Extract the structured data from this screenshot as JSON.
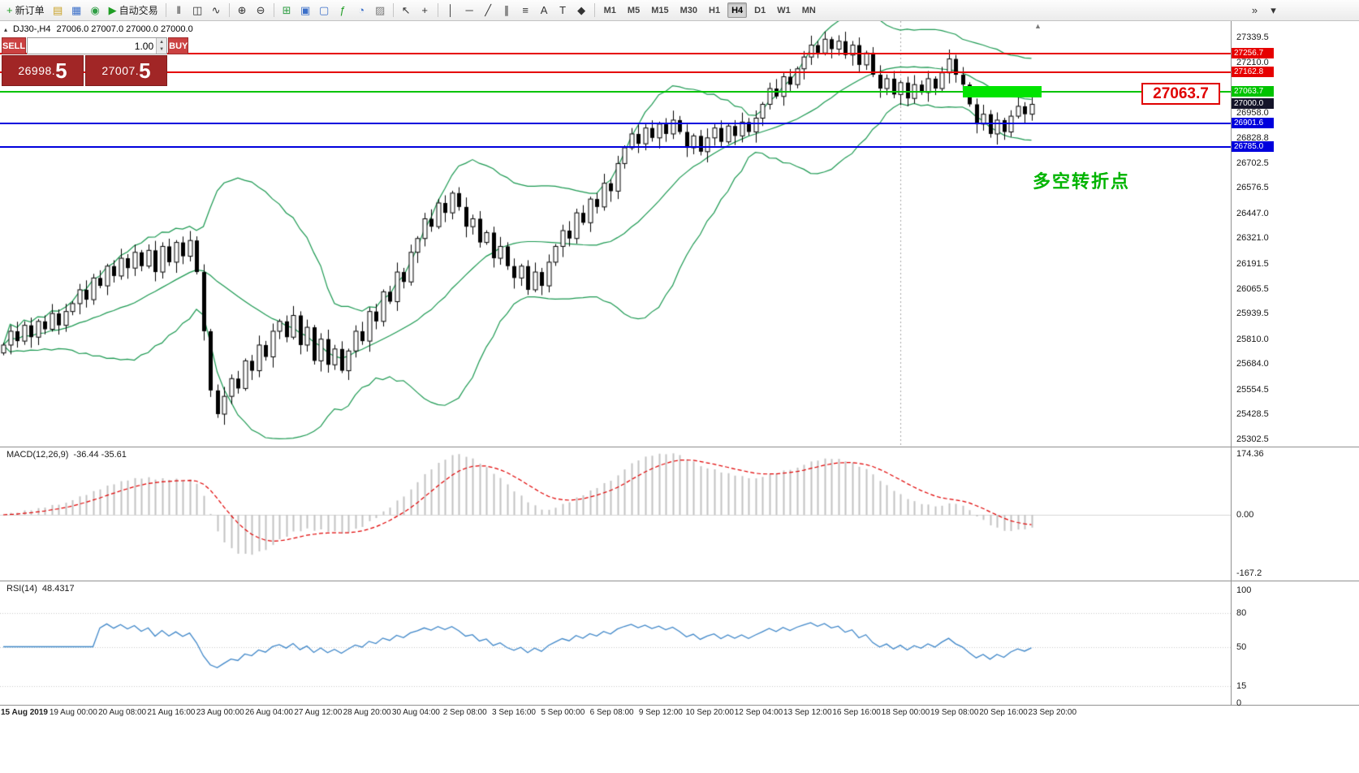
{
  "toolbar": {
    "items": [
      {
        "type": "btn",
        "name": "new-order-button",
        "glyph": "+",
        "color": "#1f9d23",
        "label": "新订单"
      },
      {
        "type": "btn",
        "name": "profiles-icon",
        "glyph": "▤",
        "color": "#c9a227"
      },
      {
        "type": "btn",
        "name": "terminal-icon",
        "glyph": "▦",
        "color": "#3b6fc9"
      },
      {
        "type": "btn",
        "name": "sounds-icon",
        "glyph": "◉",
        "color": "#2f9e44"
      },
      {
        "type": "btn",
        "name": "autotrading-button",
        "glyph": "▶",
        "color": "#1f9d23",
        "label": "自动交易"
      },
      {
        "type": "sep"
      },
      {
        "type": "btn",
        "name": "bars-chart-icon",
        "glyph": "‖"
      },
      {
        "type": "btn",
        "name": "candlestick-chart-icon",
        "glyph": "◫"
      },
      {
        "type": "btn",
        "name": "line-chart-icon",
        "glyph": "∿"
      },
      {
        "type": "sep"
      },
      {
        "type": "btn",
        "name": "zoom-in-icon",
        "glyph": "⊕"
      },
      {
        "type": "btn",
        "name": "zoom-out-icon",
        "glyph": "⊖"
      },
      {
        "type": "sep"
      },
      {
        "type": "btn",
        "name": "tile-windows-icon",
        "glyph": "⊞",
        "color": "#2f9e44"
      },
      {
        "type": "btn",
        "name": "cascade-windows-icon",
        "glyph": "▣",
        "color": "#3b6fc9"
      },
      {
        "type": "btn",
        "name": "arrange-windows-icon",
        "glyph": "▢",
        "color": "#3b6fc9"
      },
      {
        "type": "btn",
        "name": "indicators-icon",
        "glyph": "ƒ",
        "color": "#1f9d23"
      },
      {
        "type": "btn",
        "name": "periods-icon",
        "glyph": "◔",
        "color": "#3b6fc9"
      },
      {
        "type": "btn",
        "name": "templates-icon",
        "glyph": "▨",
        "color": "#777777"
      },
      {
        "type": "sep"
      },
      {
        "type": "btn",
        "name": "cursor-icon",
        "glyph": "↖"
      },
      {
        "type": "btn",
        "name": "crosshair-icon",
        "glyph": "+"
      },
      {
        "type": "sep"
      },
      {
        "type": "btn",
        "name": "vertical-line-icon",
        "glyph": "│"
      },
      {
        "type": "btn",
        "name": "horizontal-line-icon",
        "glyph": "─"
      },
      {
        "type": "btn",
        "name": "trendline-icon",
        "glyph": "╱"
      },
      {
        "type": "btn",
        "name": "equidistant-channel-icon",
        "glyph": "∥"
      },
      {
        "type": "btn",
        "name": "fibonacci-icon",
        "glyph": "≡"
      },
      {
        "type": "btn",
        "name": "text-icon",
        "glyph": "A"
      },
      {
        "type": "btn",
        "name": "text-label-icon",
        "glyph": "T"
      },
      {
        "type": "btn",
        "name": "shapes-icon",
        "glyph": "◆"
      },
      {
        "type": "sep"
      }
    ],
    "timeframes": [
      "M1",
      "M5",
      "M15",
      "M30",
      "H1",
      "H4",
      "D1",
      "W1",
      "MN"
    ],
    "active_timeframe": "H4",
    "right_items": [
      {
        "type": "btn",
        "name": "toolbar-overflow-icon",
        "glyph": "»"
      },
      {
        "type": "btn",
        "name": "toolbar-customize-icon",
        "glyph": "▾"
      }
    ]
  },
  "symbol_info": {
    "collapse_icon": "▴",
    "symbol": "DJ30-,H4",
    "ohlc": "27006.0 27007.0 27000.0 27000.0"
  },
  "one_click": {
    "sell_label": "SELL",
    "buy_label": "BUY",
    "volume": "1.00",
    "spin_up_icon": "▲",
    "spin_down_icon": "▼",
    "sell_price_main": "26998.",
    "sell_price_pip": "5",
    "buy_price_main": "27007.",
    "buy_price_pip": "5"
  },
  "objects": {
    "hlines": [
      {
        "price": "27256.7",
        "color": "#e60000"
      },
      {
        "price": "27162.8",
        "color": "#e60000"
      },
      {
        "price": "27063.7",
        "color": "#00c300"
      },
      {
        "price": "26901.6",
        "color": "#0000dd"
      },
      {
        "price": "26785.0",
        "color": "#0000dd"
      }
    ],
    "current_price_badge": {
      "price": "27000.0",
      "color": "#14142a"
    },
    "highlight_rect": {
      "price": "27063.7",
      "color": "#00e400",
      "x1_index": 139,
      "x2_index": 150.5
    },
    "big_price_label": "27063.7",
    "annotation": "多空转折点",
    "period_separator_index": 130,
    "shift_marker_icon": "▲"
  },
  "indicators": {
    "macd": {
      "label": "MACD(12,26,9)",
      "values": "-36.44 -35.61",
      "axis": [
        "174.36",
        "0.00",
        "-167.2"
      ]
    },
    "rsi": {
      "label": "RSI(14)",
      "value": "48.4317",
      "axis": [
        "100",
        "80",
        "50",
        "15",
        "0"
      ],
      "levels": [
        80,
        50,
        15
      ]
    }
  },
  "chart_data": {
    "type": "candlestick",
    "title": "DJ30-,H4",
    "symbol": "DJ30-",
    "timeframe": "H4",
    "price_axis_ticks": [
      "27339.5",
      "27210.0",
      "26958.0",
      "26828.8",
      "26702.5",
      "26576.5",
      "26447.0",
      "26321.0",
      "26191.5",
      "26065.5",
      "25939.5",
      "25810.0",
      "25684.0",
      "25554.5",
      "25428.5",
      "25302.5"
    ],
    "time_labels": [
      "15 Aug 2019",
      "19 Aug 00:00",
      "20 Aug 08:00",
      "21 Aug 16:00",
      "23 Aug 00:00",
      "26 Aug 04:00",
      "27 Aug 12:00",
      "28 Aug 20:00",
      "30 Aug 04:00",
      "2 Sep 08:00",
      "3 Sep 16:00",
      "5 Sep 00:00",
      "6 Sep 08:00",
      "9 Sep 12:00",
      "10 Sep 20:00",
      "12 Sep 04:00",
      "13 Sep 12:00",
      "16 Sep 16:00",
      "18 Sep 00:00",
      "19 Sep 08:00",
      "20 Sep 16:00",
      "23 Sep 20:00"
    ],
    "bollinger": {
      "period": 20,
      "deviation": 2,
      "color": "#1a9850"
    },
    "closes": [
      25780,
      25850,
      25800,
      25880,
      25820,
      25900,
      25860,
      25940,
      25880,
      25950,
      25990,
      26060,
      26010,
      26120,
      26080,
      26180,
      26130,
      26220,
      26170,
      26250,
      26180,
      26260,
      26150,
      26280,
      26200,
      26300,
      26230,
      26310,
      26150,
      25850,
      25550,
      25430,
      25520,
      25610,
      25560,
      25700,
      25650,
      25780,
      25720,
      25850,
      25900,
      25820,
      25930,
      25780,
      25870,
      25700,
      25810,
      25680,
      25760,
      25650,
      25750,
      25850,
      25800,
      25950,
      25900,
      26050,
      26000,
      26150,
      26100,
      26250,
      26320,
      26420,
      26380,
      26500,
      26450,
      26550,
      26480,
      26380,
      26420,
      26300,
      26350,
      26220,
      26280,
      26180,
      26120,
      26180,
      26060,
      26150,
      26080,
      26200,
      26280,
      26360,
      26320,
      26450,
      26400,
      26520,
      26480,
      26600,
      26560,
      26700,
      26780,
      26850,
      26800,
      26880,
      26830,
      26900,
      26850,
      26920,
      26860,
      26780,
      26840,
      26760,
      26830,
      26880,
      26810,
      26890,
      26840,
      26910,
      26860,
      26930,
      27000,
      27080,
      27040,
      27140,
      27100,
      27180,
      27240,
      27300,
      27260,
      27330,
      27280,
      27320,
      27250,
      27300,
      27200,
      27260,
      27150,
      27080,
      27130,
      27050,
      27110,
      27030,
      27100,
      27060,
      27130,
      27080,
      27160,
      27230,
      27150,
      27100,
      27000,
      26900,
      26950,
      26850,
      26920,
      26860,
      26940,
      26990,
      26950,
      27000
    ]
  }
}
